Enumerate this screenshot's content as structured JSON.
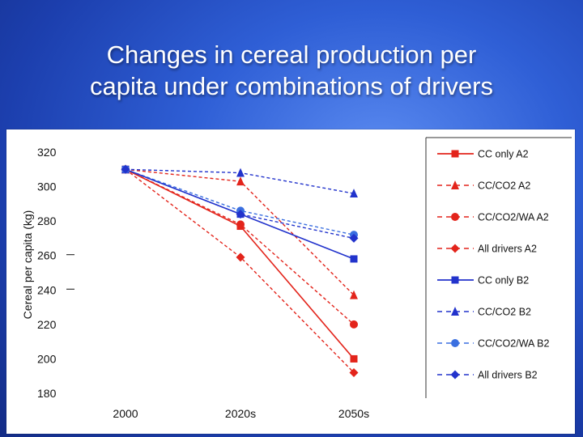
{
  "slide": {
    "title_line1": "Changes in cereal production per",
    "title_line2": "capita under combinations of drivers"
  },
  "chart_data": {
    "type": "line",
    "title": "Changes in cereal production per capita under combinations of drivers",
    "xlabel": "",
    "ylabel": "Cereal per capita (kg)",
    "categories": [
      "2000",
      "2020s",
      "2050s"
    ],
    "yticks": [
      320,
      300,
      280,
      260,
      240,
      220,
      200,
      180
    ],
    "ylim": [
      180,
      320
    ],
    "grid": false,
    "legend_position": "right",
    "series": [
      {
        "name": "CC only A2",
        "values": [
          310,
          277,
          200
        ],
        "color": "#e3241b",
        "dash": "solid",
        "marker": "square"
      },
      {
        "name": "CC/CO2 A2",
        "values": [
          310,
          303,
          237
        ],
        "color": "#e3241b",
        "dash": "dashed",
        "marker": "triangle"
      },
      {
        "name": "CC/CO2/WA A2",
        "values": [
          310,
          278,
          220
        ],
        "color": "#e3241b",
        "dash": "dashed",
        "marker": "circle"
      },
      {
        "name": "All drivers A2",
        "values": [
          310,
          259,
          192
        ],
        "color": "#e3241b",
        "dash": "dashed",
        "marker": "diamond"
      },
      {
        "name": "CC only B2",
        "values": [
          310,
          284,
          258
        ],
        "color": "#2233cc",
        "dash": "solid",
        "marker": "square"
      },
      {
        "name": "CC/CO2 B2",
        "values": [
          310,
          308,
          296
        ],
        "color": "#2233cc",
        "dash": "dashed",
        "marker": "triangle"
      },
      {
        "name": "CC/CO2/WA B2",
        "values": [
          310,
          286,
          272
        ],
        "color": "#3a6fe0",
        "dash": "dashed",
        "marker": "circle"
      },
      {
        "name": "All drivers B2",
        "values": [
          310,
          284,
          270
        ],
        "color": "#2233cc",
        "dash": "dashed",
        "marker": "diamond"
      }
    ]
  }
}
